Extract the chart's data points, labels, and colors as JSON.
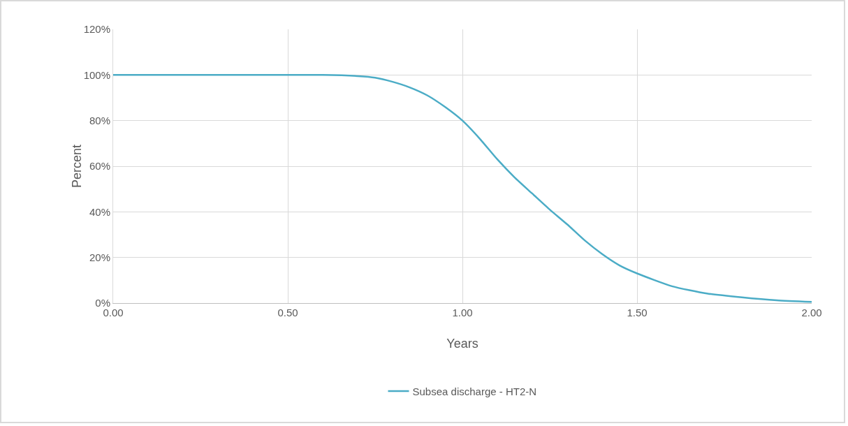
{
  "chart_data": {
    "type": "line",
    "xlabel": "Years",
    "ylabel": "Percent",
    "x": [
      0,
      0.5,
      0.6,
      0.7,
      0.75,
      0.8,
      0.85,
      0.9,
      0.95,
      1.0,
      1.05,
      1.1,
      1.15,
      1.2,
      1.25,
      1.3,
      1.35,
      1.4,
      1.45,
      1.5,
      1.6,
      1.7,
      1.8,
      1.9,
      2.0
    ],
    "series": [
      {
        "name": "Subsea discharge - HT2-N",
        "color": "#4bacc6",
        "values": [
          100,
          100,
          100,
          99.5,
          98.8,
          97,
          94.5,
          91,
          86,
          80,
          72,
          63,
          55,
          48,
          41,
          34.5,
          27.5,
          21.5,
          16.5,
          13,
          7.4,
          4.2,
          2.5,
          1.2,
          0.5
        ]
      }
    ],
    "xlim": [
      0,
      2
    ],
    "xticks": [
      {
        "value": 0,
        "label": "0.00"
      },
      {
        "value": 0.5,
        "label": "0.50"
      },
      {
        "value": 1,
        "label": "1.00"
      },
      {
        "value": 1.5,
        "label": "1.50"
      },
      {
        "value": 2,
        "label": "2.00"
      }
    ],
    "ylim": [
      0,
      120
    ],
    "yticks": [
      {
        "value": 0,
        "label": "0%"
      },
      {
        "value": 20,
        "label": "20%"
      },
      {
        "value": 40,
        "label": "40%"
      },
      {
        "value": 60,
        "label": "60%"
      },
      {
        "value": 80,
        "label": "80%"
      },
      {
        "value": 100,
        "label": "100%"
      },
      {
        "value": 120,
        "label": "120%"
      }
    ],
    "grid": true,
    "legend": "bottom",
    "marker": "none",
    "line_style": "solid"
  }
}
